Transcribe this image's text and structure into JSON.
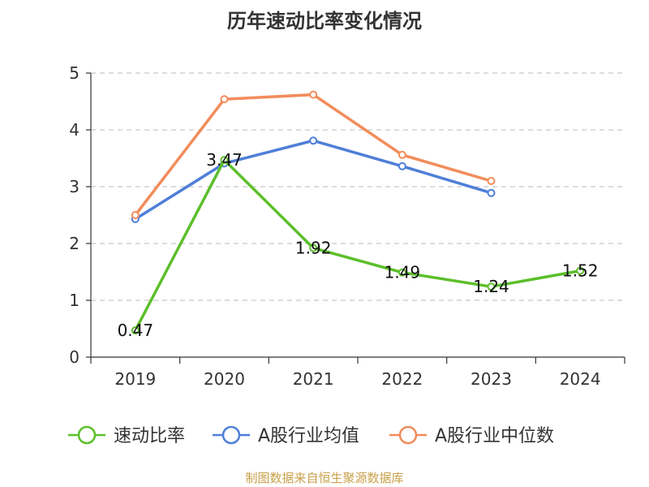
{
  "chart_data": {
    "type": "line",
    "title": "历年速动比率变化情况",
    "source": "制图数据来自恒生聚源数据库",
    "categories": [
      "2019",
      "2020",
      "2021",
      "2022",
      "2023",
      "2024"
    ],
    "ylim": [
      0,
      5
    ],
    "yticks": [
      0,
      1,
      2,
      3,
      4,
      5
    ],
    "grid": true,
    "legend_position": "bottom",
    "series": [
      {
        "name": "速动比率",
        "color": "#5cbf2a",
        "values": [
          0.47,
          3.47,
          1.92,
          1.49,
          1.24,
          1.52
        ],
        "labels": [
          "0.47",
          "3.47",
          "1.92",
          "1.49",
          "1.24",
          "1.52"
        ]
      },
      {
        "name": "A股行业均值",
        "color": "#4f7fd9",
        "values": [
          2.43,
          3.41,
          3.81,
          3.36,
          2.89,
          null
        ]
      },
      {
        "name": "A股行业中位数",
        "color": "#f28c5a",
        "values": [
          2.5,
          4.54,
          4.62,
          3.56,
          3.1,
          null
        ]
      }
    ]
  }
}
